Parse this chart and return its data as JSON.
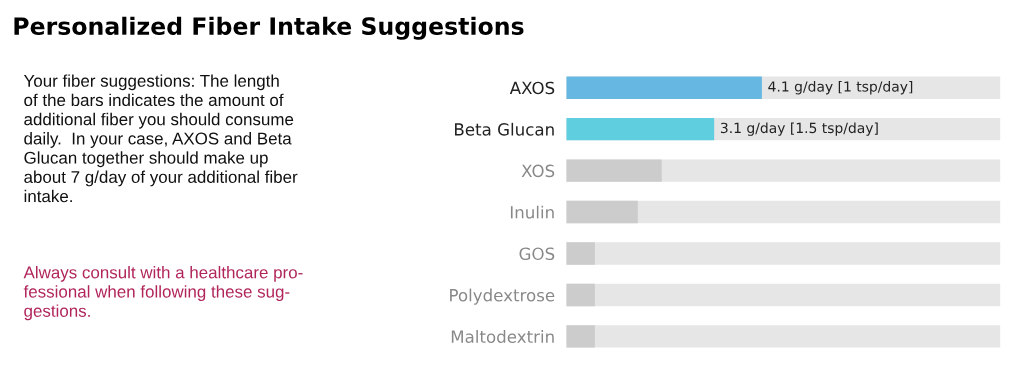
{
  "chart_data": {
    "type": "bar",
    "orientation": "horizontal",
    "title": "Personalized Fiber Intake Suggestions",
    "categories": [
      "AXOS",
      "Beta Glucan",
      "XOS",
      "Inulin",
      "GOS",
      "Polydextrose",
      "Maltodextrin"
    ],
    "values": [
      4.1,
      3.1,
      2.0,
      1.5,
      0.6,
      0.6,
      0.6
    ],
    "value_labels": [
      "4.1 g/day [1 tsp/day]",
      "3.1 g/day [1.5 tsp/day]",
      null,
      null,
      null,
      null,
      null
    ],
    "colors": [
      "#66b8e2",
      "#5fcfdf",
      "#cccccc",
      "#cccccc",
      "#cccccc",
      "#cccccc",
      "#cccccc"
    ],
    "xlim": [
      0,
      9.1
    ],
    "tick_labels": "y",
    "grid": false,
    "legend": false,
    "annotations": [
      "Your fiber suggestions: The length\nof the bars indicates the amount of\nadditional fiber you should consume\ndaily.  In your case, AXOS and Beta\nGlucan together should make up\nabout 7 g/day of your additional fiber\nintake.",
      "Always consult with a healthcare pro-\nfessional when following these sug-\ngestions."
    ]
  }
}
